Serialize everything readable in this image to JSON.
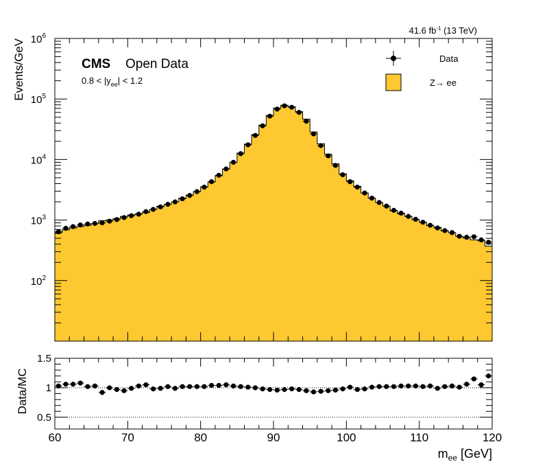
{
  "header": {
    "lumi": "41.6 fb",
    "lumi_exp": "-1",
    "energy": " (13 TeV)"
  },
  "labels": {
    "cms": "CMS",
    "open_data": "Open Data",
    "cut_pre": "0.8 < |y",
    "cut_sub": "ee",
    "cut_post": "| < 1.2"
  },
  "legend": {
    "data_label": "Data",
    "mc_label": "Z→ ee"
  },
  "colors": {
    "mc_fill": "#fdc830",
    "data": "#000000"
  },
  "chart_data": [
    {
      "type": "histogram",
      "ylabel": "Events/GeV",
      "y_scale": "log",
      "ylim": [
        10,
        1000000
      ],
      "xlim": [
        60,
        120
      ],
      "y_tick_labels": [
        {
          "base": "10",
          "exp": "2"
        },
        {
          "base": "10",
          "exp": "3"
        },
        {
          "base": "10",
          "exp": "4"
        },
        {
          "base": "10",
          "exp": "5"
        },
        {
          "base": "10",
          "exp": "6"
        }
      ],
      "series": [
        {
          "name": "Data",
          "style": "points",
          "values": [
            640,
            730,
            780,
            830,
            860,
            880,
            900,
            960,
            1020,
            1100,
            1180,
            1250,
            1380,
            1500,
            1650,
            1820,
            2000,
            2250,
            2550,
            2950,
            3500,
            4300,
            5500,
            7000,
            9000,
            12500,
            17500,
            25000,
            36000,
            52000,
            68000,
            77000,
            73000,
            60000,
            43000,
            26500,
            17000,
            11500,
            8000,
            5600,
            4300,
            3500,
            2800,
            2300,
            1950,
            1700,
            1450,
            1300,
            1150,
            1030,
            920,
            820,
            740,
            670,
            620,
            540,
            520,
            530,
            470,
            430
          ]
        },
        {
          "name": "Z→ ee",
          "style": "filled-step",
          "values": [
            620,
            690,
            740,
            780,
            820,
            870,
            980,
            1000,
            1060,
            1150,
            1220,
            1270,
            1330,
            1500,
            1700,
            1830,
            2000,
            2300,
            2580,
            2950,
            3550,
            4250,
            5400,
            6950,
            9000,
            12800,
            18000,
            25800,
            37000,
            53500,
            71000,
            79000,
            74500,
            61800,
            46500,
            28500,
            18200,
            12300,
            8500,
            5800,
            4450,
            3600,
            2800,
            2300,
            1950,
            1700,
            1420,
            1270,
            1150,
            1020,
            920,
            810,
            760,
            660,
            620,
            540,
            505,
            470,
            455,
            370
          ]
        }
      ]
    },
    {
      "type": "scatter",
      "xlabel": "m",
      "xlabel_sub": "ee",
      "xlabel_unit": " [GeV]",
      "ylabel": "Data/MC",
      "xlim": [
        60,
        120
      ],
      "ylim": [
        0.3,
        1.5
      ],
      "x_tick_labels": [
        "60",
        "70",
        "80",
        "90",
        "100",
        "110",
        "120"
      ],
      "y_tick_labels": [
        "0.5",
        "1",
        "1.5"
      ],
      "reference_lines": [
        1.0,
        0.5
      ],
      "series": [
        {
          "name": "Data/MC",
          "values": [
            1.03,
            1.06,
            1.06,
            1.08,
            1.02,
            1.03,
            0.92,
            1.0,
            0.97,
            0.95,
            0.99,
            1.03,
            1.05,
            0.98,
            0.99,
            1.02,
            0.99,
            1.02,
            1.02,
            1.02,
            1.02,
            1.04,
            1.04,
            1.05,
            1.03,
            1.02,
            1.01,
            1.0,
            0.98,
            0.97,
            0.96,
            0.97,
            0.98,
            0.97,
            0.95,
            0.93,
            0.94,
            0.95,
            0.96,
            0.98,
            1.01,
            0.97,
            0.98,
            1.01,
            1.02,
            1.02,
            1.02,
            1.03,
            1.03,
            1.03,
            1.02,
            1.03,
            0.99,
            1.02,
            1.03,
            1.01,
            1.06,
            1.15,
            1.05,
            1.2
          ]
        }
      ]
    }
  ]
}
